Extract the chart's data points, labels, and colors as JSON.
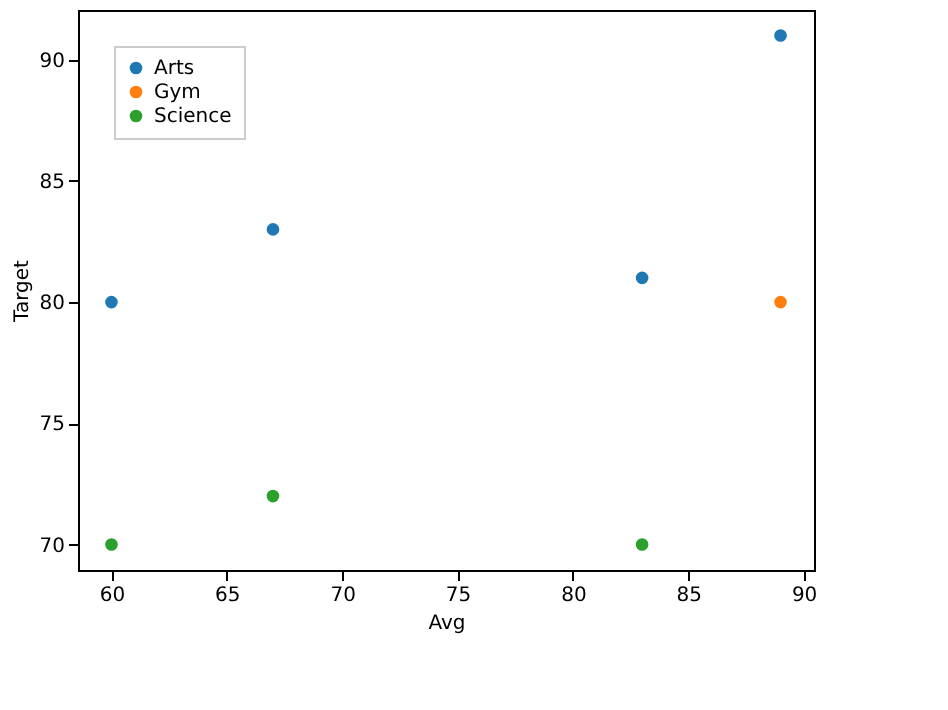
{
  "chart_data": {
    "type": "scatter",
    "xlabel": "Avg",
    "ylabel": "Target",
    "xlim": [
      58.55,
      90.45
    ],
    "ylim": [
      68.95,
      92.05
    ],
    "xticks": [
      60,
      65,
      70,
      75,
      80,
      85,
      90
    ],
    "yticks": [
      70,
      75,
      80,
      85,
      90
    ],
    "grid": false,
    "legend": "top left",
    "marker": "circle",
    "series": [
      {
        "name": "Arts",
        "color": "#1f77b4",
        "x": [
          60,
          67,
          83,
          89
        ],
        "values": [
          80,
          83,
          81,
          91
        ]
      },
      {
        "name": "Gym",
        "color": "#ff7f0e",
        "x": [
          89
        ],
        "values": [
          80
        ]
      },
      {
        "name": "Science",
        "color": "#2ca02c",
        "x": [
          60,
          67,
          83
        ],
        "values": [
          70,
          72,
          70
        ]
      }
    ]
  }
}
